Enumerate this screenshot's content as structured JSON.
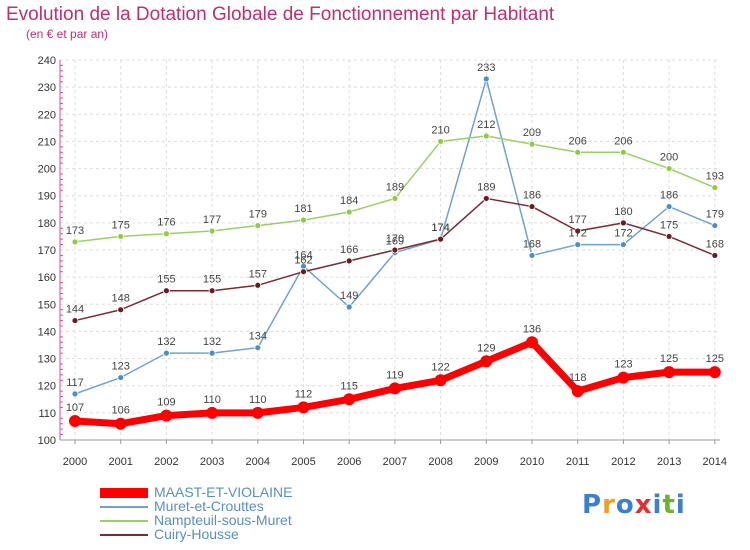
{
  "chart_data": {
    "type": "line",
    "title": "Evolution de la Dotation Globale de Fonctionnement par Habitant",
    "subtitle": "(en € et par an)",
    "x": [
      "2000",
      "2001",
      "2002",
      "2003",
      "2004",
      "2005",
      "2006",
      "2007",
      "2008",
      "2009",
      "2010",
      "2011",
      "2012",
      "2013",
      "2014"
    ],
    "ylim": [
      100,
      240
    ],
    "yticks": [
      100,
      110,
      120,
      130,
      140,
      150,
      160,
      170,
      180,
      190,
      200,
      210,
      220,
      230,
      240
    ],
    "grid": true,
    "legend_position": "bottom-left",
    "series": [
      {
        "name": "MAAST-ET-VIOLAINE",
        "color": "#ff0000",
        "marker_color": "#ff0000",
        "thick": true,
        "values": [
          107,
          106,
          109,
          110,
          110,
          112,
          115,
          119,
          122,
          129,
          136,
          118,
          123,
          125,
          125
        ]
      },
      {
        "name": "Muret-et-Crouttes",
        "color": "#6fa3cf",
        "marker_color": "#4a90c8",
        "thick": false,
        "values": [
          117,
          123,
          132,
          132,
          134,
          164,
          149,
          169,
          174,
          233,
          168,
          172,
          172,
          186,
          179
        ]
      },
      {
        "name": "Nampteuil-sous-Muret",
        "color": "#99d066",
        "marker_color": "#8fcc44",
        "thick": false,
        "values": [
          173,
          175,
          176,
          177,
          179,
          181,
          184,
          189,
          210,
          212,
          209,
          206,
          206,
          200,
          193
        ]
      },
      {
        "name": "Cuiry-Housse",
        "color": "#7a2a33",
        "marker_color": "#6b1a22",
        "thick": false,
        "values": [
          144,
          148,
          155,
          155,
          157,
          162,
          166,
          170,
          174,
          189,
          186,
          177,
          180,
          175,
          168
        ]
      }
    ]
  },
  "logo": {
    "letters": [
      "P",
      "r",
      "o",
      "x",
      "i",
      "t",
      "i"
    ],
    "colors": [
      "#3a7fd0",
      "#f0a020",
      "#3a7fd0",
      "#e03030",
      "#3a7fd0",
      "#70b030",
      "#3a7fd0"
    ]
  }
}
